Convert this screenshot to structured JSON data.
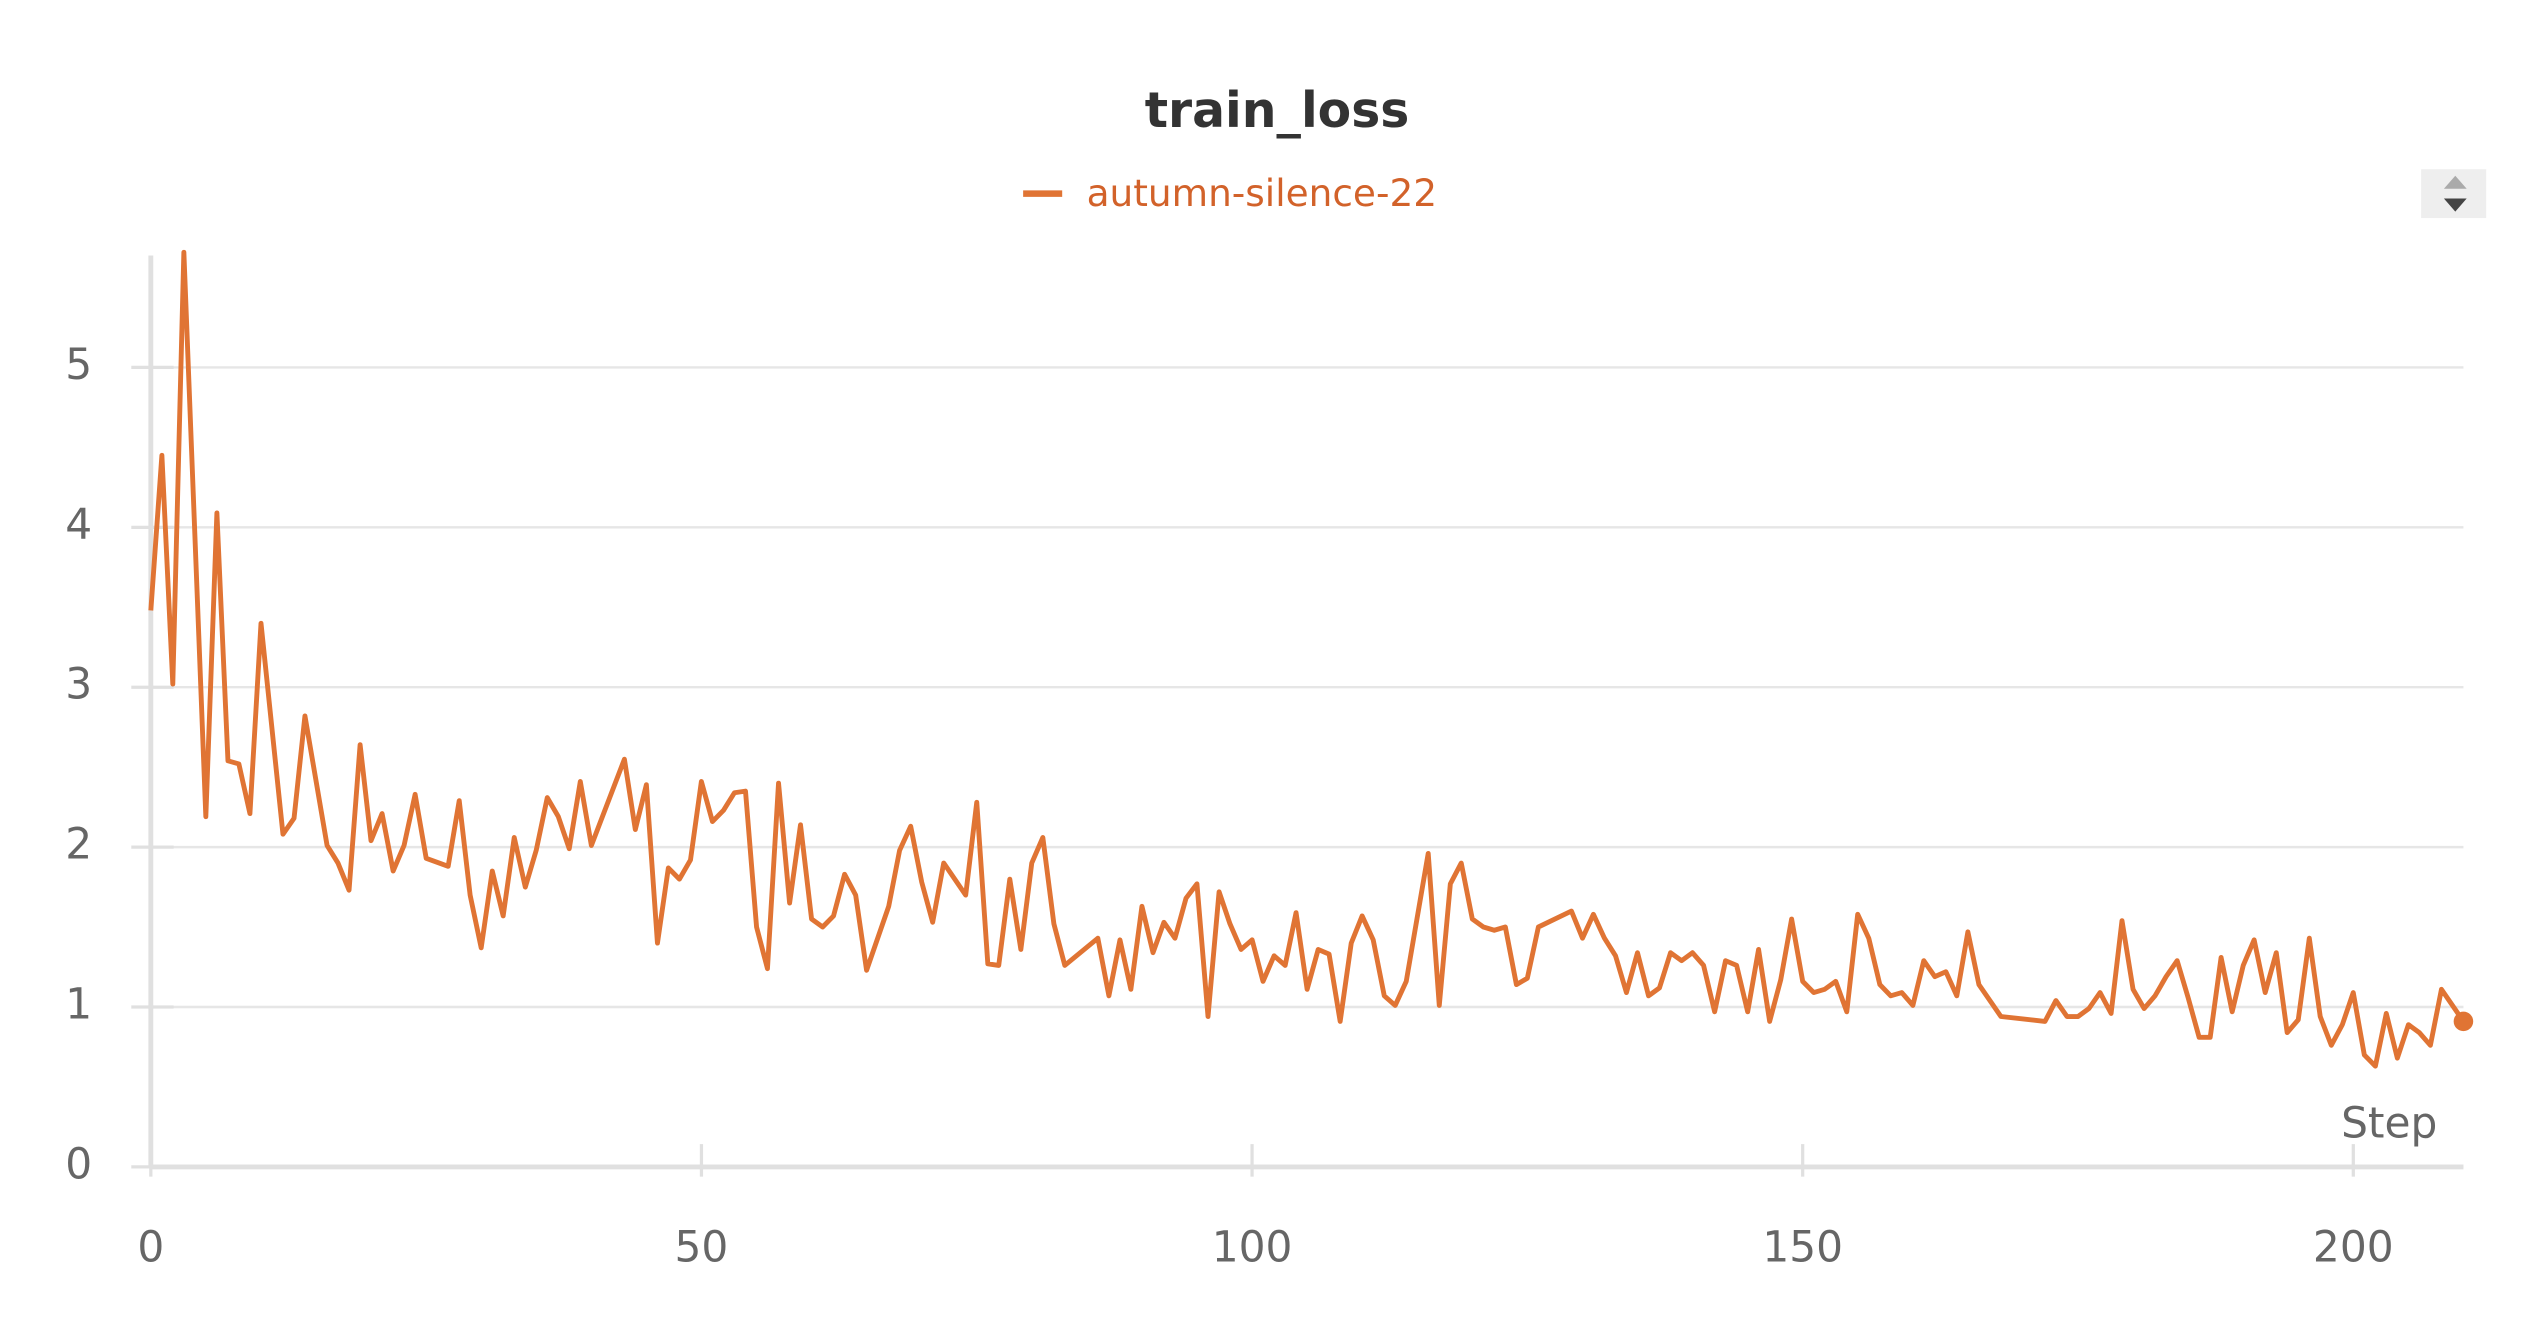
{
  "chart_data": {
    "type": "line",
    "title": "train_loss",
    "x_label": "Step",
    "x": [
      0,
      1,
      2,
      3,
      5,
      6,
      7,
      8,
      9,
      10,
      12,
      13,
      14,
      16,
      17,
      18,
      19,
      20,
      21,
      22,
      23,
      24,
      25,
      27,
      28,
      29,
      30,
      31,
      32,
      33,
      34,
      35,
      36,
      37,
      38,
      39,
      40,
      43,
      44,
      45,
      46,
      47,
      48,
      49,
      50,
      51,
      52,
      53,
      54,
      55,
      56,
      57,
      58,
      59,
      60,
      61,
      62,
      63,
      64,
      65,
      67,
      68,
      69,
      70,
      71,
      72,
      74,
      75,
      76,
      77,
      78,
      79,
      80,
      81,
      82,
      83,
      86,
      87,
      88,
      89,
      90,
      91,
      92,
      93,
      94,
      95,
      96,
      97,
      98,
      99,
      100,
      101,
      102,
      103,
      104,
      105,
      106,
      107,
      108,
      109,
      110,
      111,
      112,
      113,
      114,
      116,
      117,
      118,
      119,
      120,
      121,
      122,
      123,
      124,
      125,
      126,
      129,
      130,
      131,
      132,
      133,
      134,
      135,
      136,
      137,
      138,
      139,
      140,
      141,
      142,
      143,
      144,
      145,
      146,
      147,
      148,
      149,
      150,
      151,
      152,
      153,
      154,
      155,
      156,
      157,
      158,
      159,
      160,
      161,
      162,
      163,
      164,
      165,
      166,
      168,
      172,
      173,
      174,
      175,
      176,
      177,
      178,
      179,
      180,
      181,
      182,
      183,
      184,
      185,
      186,
      187,
      188,
      189,
      190,
      191,
      192,
      193,
      194,
      195,
      196,
      197,
      198,
      199,
      200,
      201,
      202,
      203,
      204,
      205,
      206,
      207,
      208,
      210
    ],
    "series": [
      {
        "name": "autumn-silence-22",
        "color": "#e07434",
        "values": [
          3.48,
          4.45,
          3.02,
          5.72,
          2.19,
          4.09,
          2.54,
          2.52,
          2.21,
          3.4,
          2.08,
          2.18,
          2.82,
          2.01,
          1.9,
          1.73,
          2.64,
          2.04,
          2.21,
          1.85,
          2.01,
          2.33,
          1.93,
          1.88,
          2.29,
          1.7,
          1.37,
          1.85,
          1.57,
          2.06,
          1.75,
          1.98,
          2.31,
          2.19,
          1.99,
          2.41,
          2.01,
          2.55,
          2.11,
          2.39,
          1.4,
          1.87,
          1.8,
          1.92,
          2.41,
          2.16,
          2.23,
          2.34,
          2.35,
          1.5,
          1.24,
          2.4,
          1.65,
          2.14,
          1.55,
          1.5,
          1.57,
          1.83,
          1.7,
          1.23,
          1.63,
          1.98,
          2.13,
          1.78,
          1.53,
          1.9,
          1.7,
          2.28,
          1.27,
          1.26,
          1.8,
          1.36,
          1.9,
          2.06,
          1.52,
          1.26,
          1.43,
          1.07,
          1.42,
          1.11,
          1.63,
          1.34,
          1.53,
          1.43,
          1.68,
          1.77,
          0.94,
          1.72,
          1.52,
          1.36,
          1.42,
          1.16,
          1.32,
          1.26,
          1.59,
          1.11,
          1.36,
          1.33,
          0.91,
          1.4,
          1.57,
          1.42,
          1.07,
          1.01,
          1.16,
          1.96,
          1.01,
          1.77,
          1.9,
          1.55,
          1.5,
          1.48,
          1.5,
          1.14,
          1.18,
          1.5,
          1.6,
          1.43,
          1.58,
          1.43,
          1.32,
          1.09,
          1.34,
          1.07,
          1.12,
          1.34,
          1.29,
          1.34,
          1.26,
          0.97,
          1.29,
          1.26,
          0.97,
          1.36,
          0.91,
          1.17,
          1.55,
          1.16,
          1.09,
          1.11,
          1.16,
          0.97,
          1.58,
          1.43,
          1.14,
          1.07,
          1.09,
          1.01,
          1.29,
          1.19,
          1.22,
          1.07,
          1.47,
          1.14,
          0.94,
          0.91,
          1.04,
          0.94,
          0.94,
          0.99,
          1.09,
          0.96,
          1.54,
          1.11,
          0.99,
          1.07,
          1.19,
          1.29,
          1.06,
          0.81,
          0.81,
          1.31,
          0.97,
          1.26,
          1.42,
          1.09,
          1.34,
          0.84,
          0.92,
          1.43,
          0.94,
          0.76,
          0.89,
          1.09,
          0.7,
          0.63,
          0.96,
          0.68,
          0.89,
          0.84,
          0.76,
          1.11,
          0.91
        ]
      }
    ],
    "xlim": [
      0,
      210
    ],
    "ylim": [
      0,
      5.7
    ],
    "xticks": [
      0,
      50,
      100,
      150,
      200
    ],
    "yticks": [
      0,
      1,
      2,
      3,
      4,
      5
    ],
    "grid": true
  }
}
